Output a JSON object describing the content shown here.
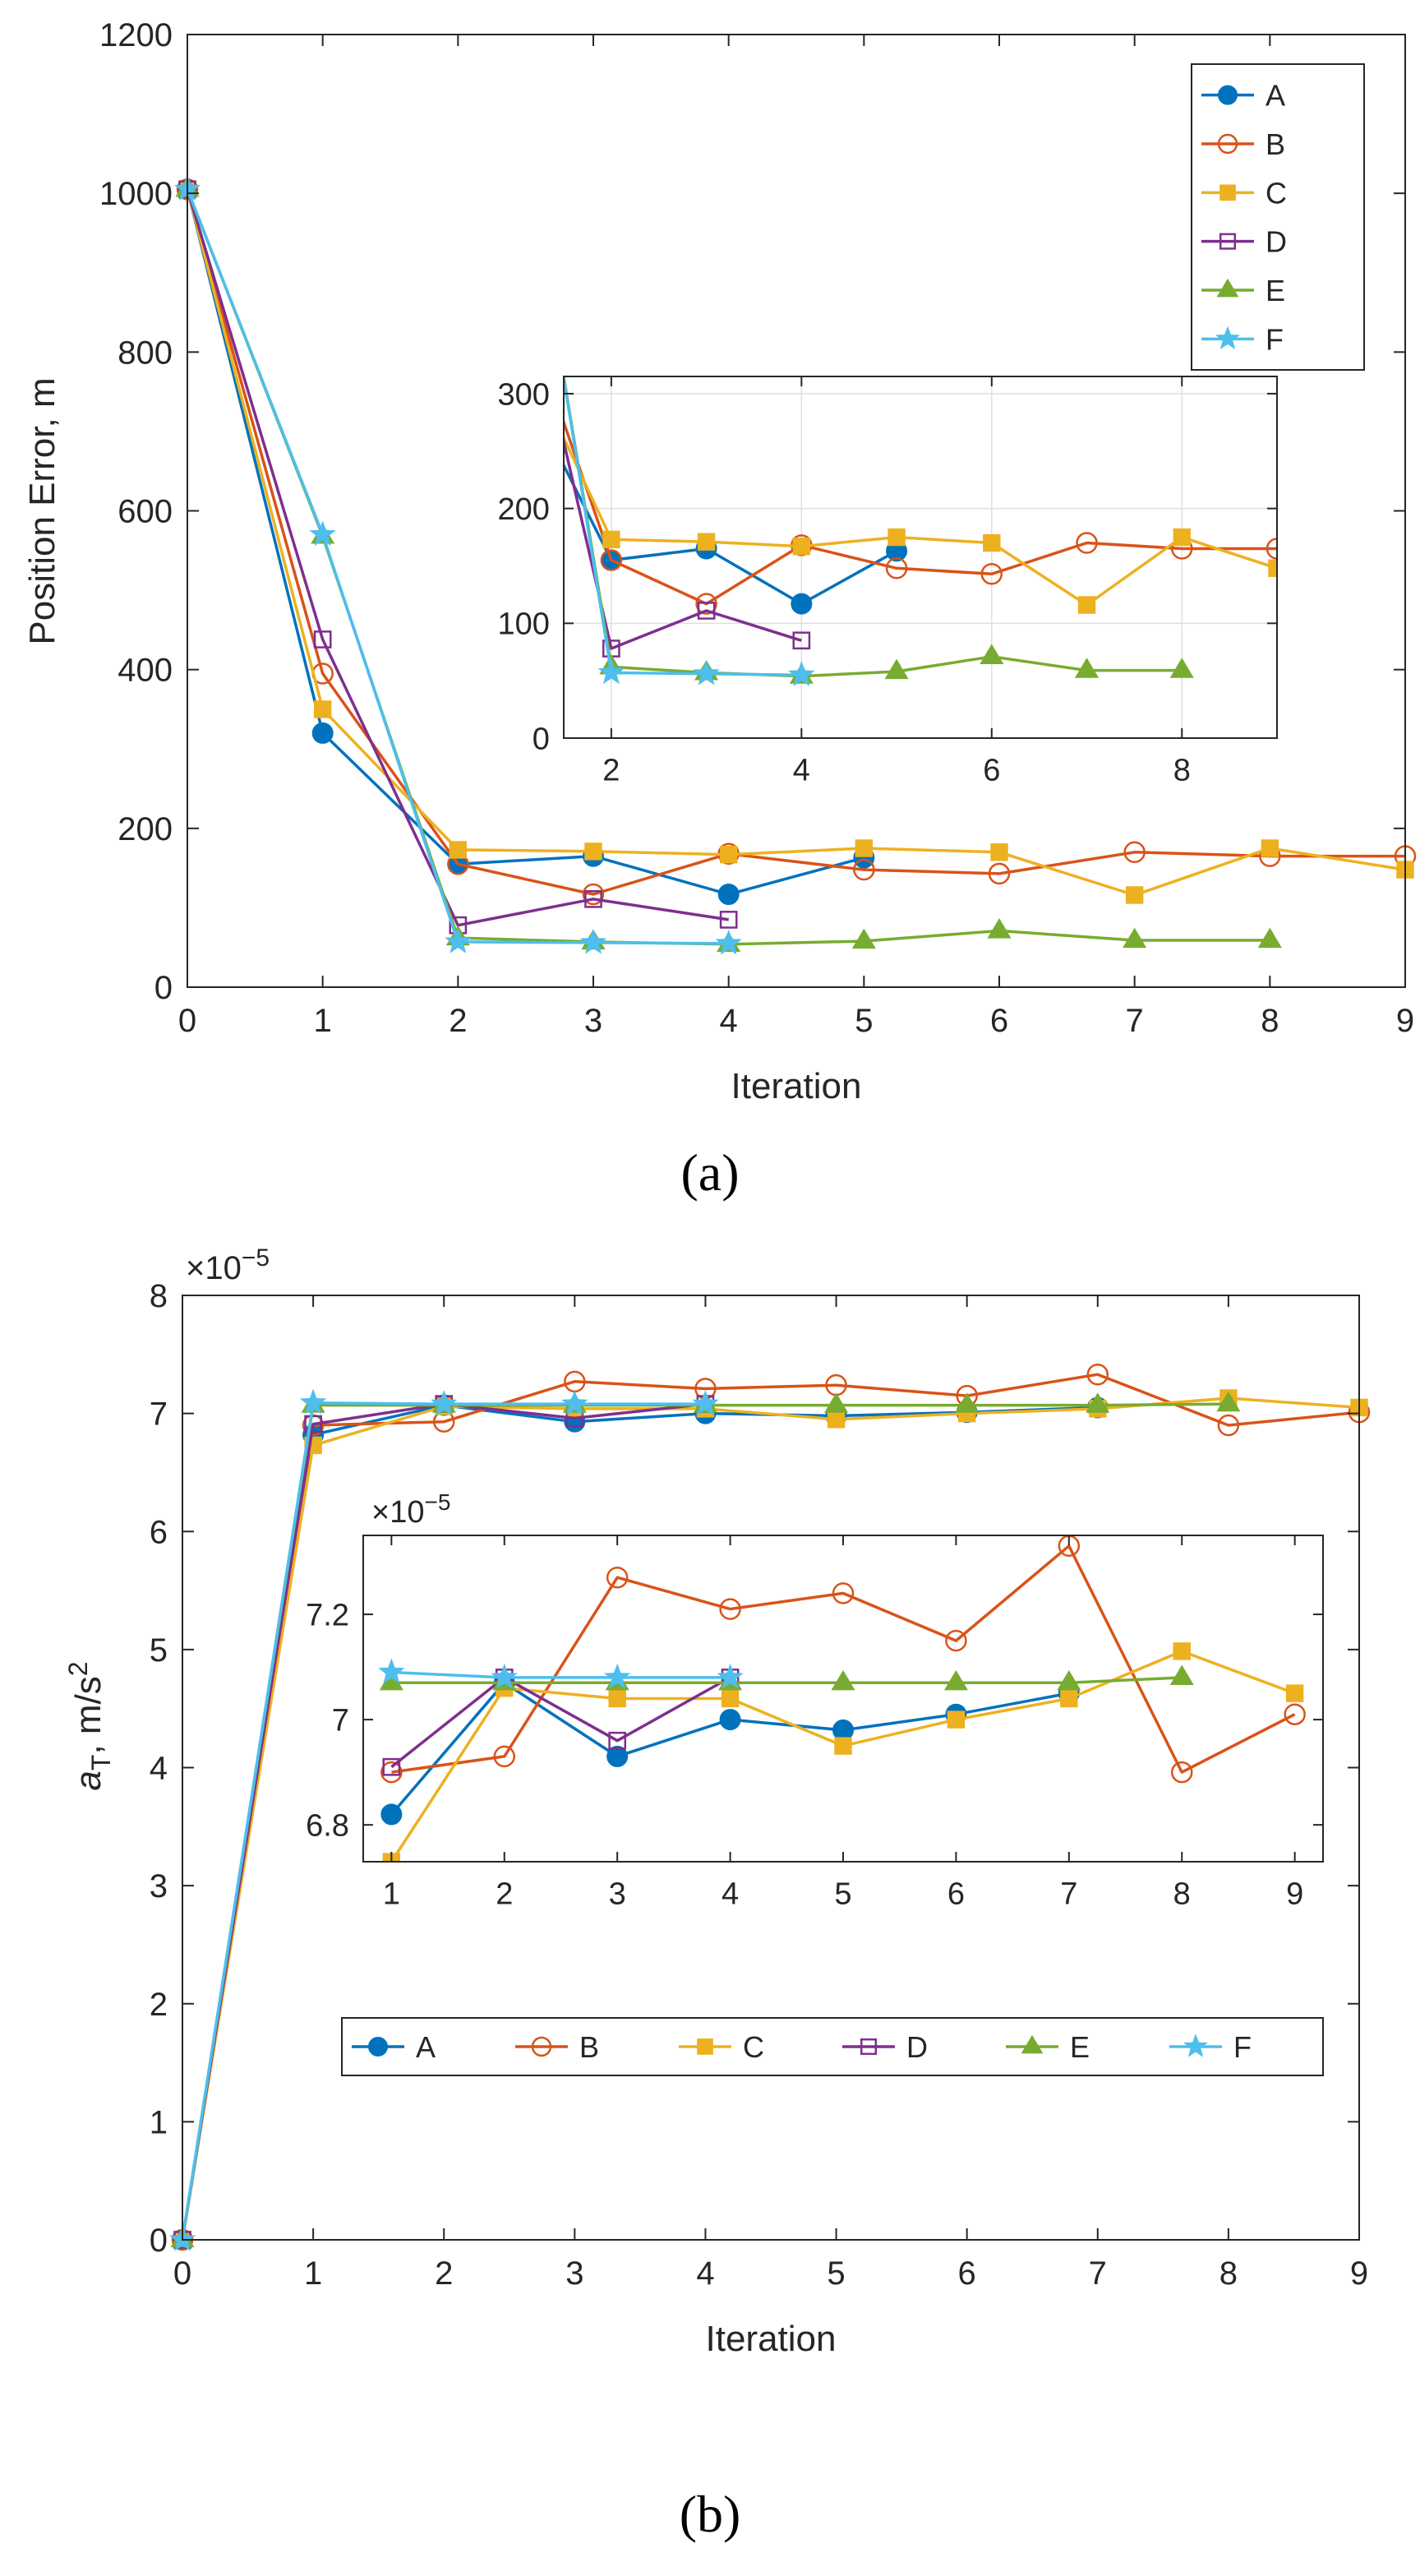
{
  "chart_data": [
    {
      "id": "a",
      "type": "line",
      "caption": "(a)",
      "xlabel": "Iteration",
      "ylabel": "Position Error, m",
      "xlim": [
        0,
        9
      ],
      "ylim": [
        0,
        1200
      ],
      "xticks": [
        "0",
        "1",
        "2",
        "3",
        "4",
        "5",
        "6",
        "7",
        "8",
        "9"
      ],
      "yticks": [
        "0",
        "200",
        "400",
        "600",
        "800",
        "1000",
        "1200"
      ],
      "grid": false,
      "legend_position": "top-right",
      "series": [
        {
          "name": "A",
          "color": "#0072BD",
          "marker": "filled-circle",
          "x": [
            0,
            1,
            2,
            3,
            4,
            5
          ],
          "y": [
            1005,
            320,
            155,
            165,
            117,
            163
          ]
        },
        {
          "name": "B",
          "color": "#D95319",
          "marker": "open-circle",
          "x": [
            0,
            1,
            2,
            3,
            4,
            5,
            6,
            7,
            8,
            9
          ],
          "y": [
            1005,
            395,
            155,
            117,
            168,
            148,
            143,
            170,
            165,
            165
          ]
        },
        {
          "name": "C",
          "color": "#EDB120",
          "marker": "filled-square",
          "x": [
            0,
            1,
            2,
            3,
            4,
            5,
            6,
            7,
            8,
            9
          ],
          "y": [
            1005,
            350,
            173,
            171,
            167,
            175,
            170,
            116,
            175,
            148
          ]
        },
        {
          "name": "D",
          "color": "#7E2F8E",
          "marker": "open-square",
          "x": [
            0,
            1,
            2,
            3,
            4
          ],
          "y": [
            1005,
            438,
            78,
            111,
            85
          ]
        },
        {
          "name": "E",
          "color": "#77AC30",
          "marker": "filled-triangle",
          "x": [
            0,
            1,
            2,
            3,
            4,
            5,
            6,
            7,
            8
          ],
          "y": [
            1005,
            568,
            62,
            57,
            54,
            58,
            71,
            59,
            59
          ]
        },
        {
          "name": "F",
          "color": "#4DBEEE",
          "marker": "filled-star",
          "x": [
            0,
            1,
            2,
            3,
            4
          ],
          "y": [
            1005,
            570,
            57,
            56,
            55
          ]
        }
      ],
      "inset": {
        "xlim": [
          1.5,
          9
        ],
        "ylim": [
          0,
          315
        ],
        "xticks": [
          "2",
          "4",
          "6",
          "8"
        ],
        "yticks": [
          "0",
          "100",
          "200",
          "300"
        ],
        "grid": true,
        "series_x_start": 1
      }
    },
    {
      "id": "b",
      "type": "line",
      "caption": "(b)",
      "xlabel": "Iteration",
      "ylabel": "aT, m/s2",
      "ylabel_parts": {
        "symbol": "a",
        "subscript": "T",
        "unit": ", m/s",
        "superscript": "2"
      },
      "exponent_label": "×10−5",
      "exponent_parts": {
        "base": "×10",
        "power": "−5"
      },
      "xlim": [
        0,
        9
      ],
      "ylim": [
        0,
        8
      ],
      "xticks": [
        "0",
        "1",
        "2",
        "3",
        "4",
        "5",
        "6",
        "7",
        "8",
        "9"
      ],
      "yticks": [
        "0",
        "1",
        "2",
        "3",
        "4",
        "5",
        "6",
        "7",
        "8"
      ],
      "grid": false,
      "legend_position": "lower-center",
      "series": [
        {
          "name": "A",
          "color": "#0072BD",
          "marker": "filled-circle",
          "x": [
            0,
            1,
            2,
            3,
            4,
            5,
            6,
            7
          ],
          "y": [
            0,
            6.82,
            7.07,
            6.93,
            7.0,
            6.98,
            7.01,
            7.05
          ]
        },
        {
          "name": "B",
          "color": "#D95319",
          "marker": "open-circle",
          "x": [
            0,
            1,
            2,
            3,
            4,
            5,
            6,
            7,
            8,
            9
          ],
          "y": [
            0,
            6.9,
            6.93,
            7.27,
            7.21,
            7.24,
            7.15,
            7.33,
            6.9,
            7.01
          ]
        },
        {
          "name": "C",
          "color": "#EDB120",
          "marker": "filled-square",
          "x": [
            0,
            1,
            2,
            3,
            4,
            5,
            6,
            7,
            8,
            9
          ],
          "y": [
            0,
            6.73,
            7.06,
            7.04,
            7.04,
            6.95,
            7.0,
            7.04,
            7.13,
            7.05
          ]
        },
        {
          "name": "D",
          "color": "#7E2F8E",
          "marker": "open-square",
          "x": [
            0,
            1,
            2,
            3,
            4
          ],
          "y": [
            0,
            6.91,
            7.08,
            6.96,
            7.08
          ]
        },
        {
          "name": "E",
          "color": "#77AC30",
          "marker": "filled-triangle",
          "x": [
            0,
            1,
            2,
            3,
            4,
            5,
            6,
            7,
            8
          ],
          "y": [
            0,
            7.07,
            7.07,
            7.07,
            7.07,
            7.07,
            7.07,
            7.07,
            7.08
          ]
        },
        {
          "name": "F",
          "color": "#4DBEEE",
          "marker": "filled-star",
          "x": [
            0,
            1,
            2,
            3,
            4
          ],
          "y": [
            0,
            7.09,
            7.08,
            7.08,
            7.08
          ]
        }
      ],
      "inset": {
        "xlim": [
          0.75,
          9.25
        ],
        "ylim": [
          6.73,
          7.35
        ],
        "xticks": [
          "1",
          "2",
          "3",
          "4",
          "5",
          "6",
          "7",
          "8",
          "9"
        ],
        "ytick_values": [
          6.8,
          7.0,
          7.2
        ],
        "yticks": [
          "6.8",
          "7",
          "7.2"
        ],
        "grid": false,
        "exponent_label": "×10−5",
        "series_x_start": 1
      }
    }
  ]
}
